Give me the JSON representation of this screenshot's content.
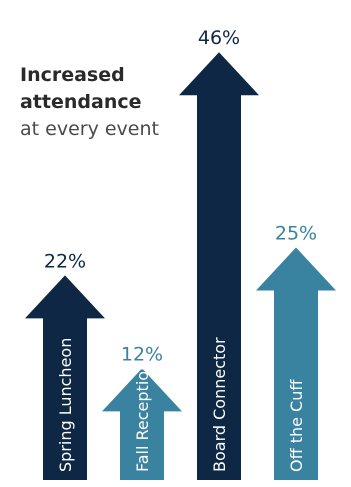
{
  "headline": {
    "line1": "Increased",
    "line2": "attendance",
    "line3": "at every event"
  },
  "colors": {
    "dark_navy": "#0d2744",
    "teal": "#3a83a0",
    "label_white": "#ffffff",
    "background": "#ffffff"
  },
  "chart_data": {
    "type": "bar",
    "categories": [
      "Spring Luncheon",
      "Fall Reception",
      "Board Connector",
      "Off the Cuff"
    ],
    "values": [
      22,
      12,
      46,
      25
    ],
    "value_labels": [
      "22%",
      "12%",
      "46%",
      "25%"
    ],
    "series_colors": [
      "#0d2744",
      "#3a83a0",
      "#0d2744",
      "#3a83a0"
    ],
    "ylim": [
      0,
      50
    ],
    "title": "",
    "xlabel": "",
    "ylabel": "",
    "grid": false,
    "legend": "none"
  }
}
